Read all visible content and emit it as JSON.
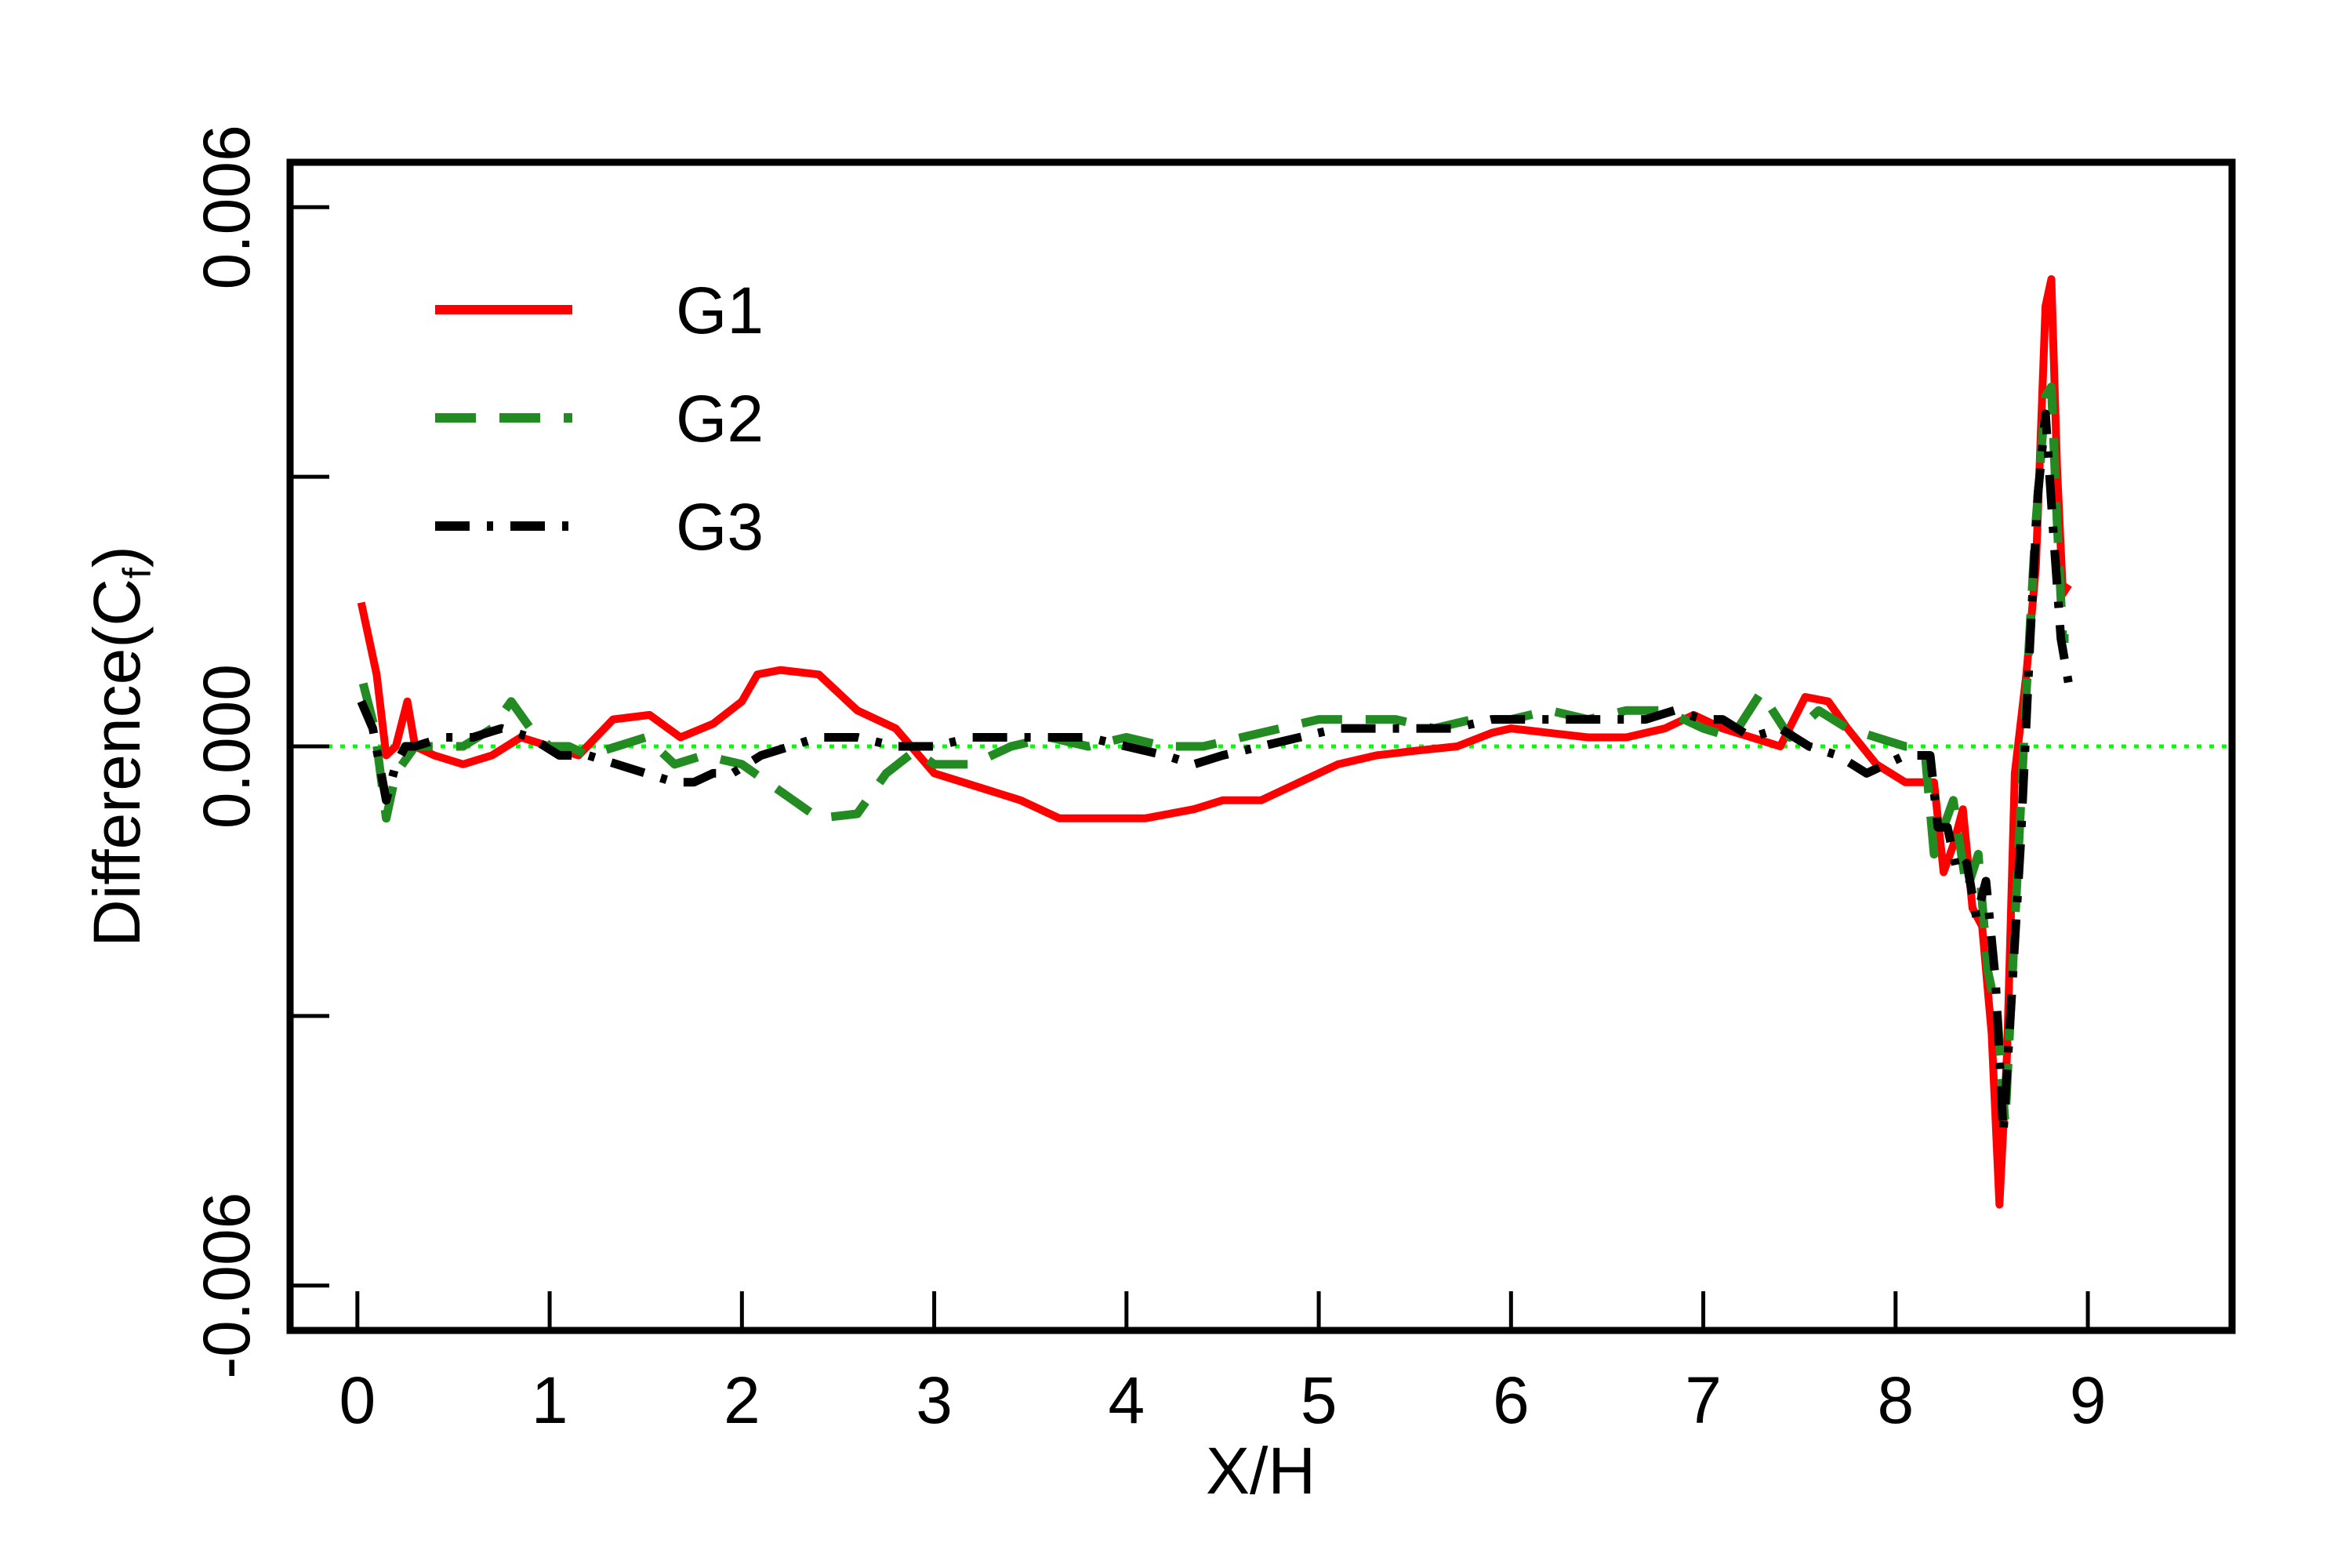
{
  "chart_data": {
    "type": "line",
    "xlabel": "X/H",
    "ylabel_main": "Difference(C",
    "ylabel_sub": "f",
    "ylabel_close": ")",
    "xlim": [
      -0.35,
      9.75
    ],
    "ylim": [
      -0.0065,
      0.0065
    ],
    "xticks": [
      0,
      1,
      2,
      3,
      4,
      5,
      6,
      7,
      8,
      9
    ],
    "xtick_labels": [
      "0",
      "1",
      "2",
      "3",
      "4",
      "5",
      "6",
      "7",
      "8",
      "9"
    ],
    "yticks": [
      -0.006,
      -0.003,
      0.0,
      0.003,
      0.006
    ],
    "ytick_labels": [
      "-0.006",
      "",
      "0.000",
      "",
      "0.006"
    ],
    "zero_line": {
      "y": 0.0,
      "color": "#00ff00",
      "style": "dotted"
    },
    "legend_position": "top-left",
    "series": [
      {
        "name": "G1",
        "color": "#ff0000",
        "style": "solid",
        "x": [
          0.02,
          0.1,
          0.15,
          0.2,
          0.26,
          0.3,
          0.4,
          0.55,
          0.7,
          0.85,
          1.0,
          1.15,
          1.33,
          1.52,
          1.68,
          1.85,
          2.0,
          2.08,
          2.2,
          2.4,
          2.6,
          2.8,
          3.0,
          3.15,
          3.3,
          3.45,
          3.65,
          3.9,
          4.1,
          4.35,
          4.5,
          4.7,
          4.9,
          5.1,
          5.3,
          5.5,
          5.72,
          5.9,
          6.0,
          6.2,
          6.4,
          6.6,
          6.8,
          6.95,
          7.1,
          7.25,
          7.4,
          7.53,
          7.65,
          7.75,
          7.9,
          8.05,
          8.2,
          8.25,
          8.3,
          8.35,
          8.4,
          8.45,
          8.5,
          8.54,
          8.58,
          8.62,
          8.68,
          8.73,
          8.78,
          8.81,
          8.84,
          8.87,
          8.9
        ],
        "y": [
          0.0016,
          0.0008,
          -0.0001,
          0.0,
          0.0005,
          0.0,
          -0.0001,
          -0.0002,
          -0.0001,
          0.0001,
          0.0,
          -0.0001,
          0.0003,
          0.00035,
          0.0001,
          0.00025,
          0.0005,
          0.0008,
          0.00085,
          0.0008,
          0.0004,
          0.0002,
          -0.0003,
          -0.0004,
          -0.0005,
          -0.0006,
          -0.0008,
          -0.0008,
          -0.0008,
          -0.0007,
          -0.0006,
          -0.0006,
          -0.0004,
          -0.0002,
          -0.0001,
          -5e-05,
          0.0,
          0.00015,
          0.0002,
          0.00015,
          0.0001,
          0.0001,
          0.0002,
          0.00035,
          0.0002,
          0.0001,
          0.0,
          0.00055,
          0.0005,
          0.0002,
          -0.0002,
          -0.0004,
          -0.0004,
          -0.0014,
          -0.0011,
          -0.0007,
          -0.0018,
          -0.002,
          -0.0032,
          -0.0051,
          -0.0034,
          -0.0003,
          0.0008,
          0.002,
          0.0049,
          0.0052,
          0.0031,
          0.0017,
          0.0018
        ]
      },
      {
        "name": "G2",
        "color": "#228b22",
        "style": "dashed",
        "x": [
          0.03,
          0.09,
          0.15,
          0.2,
          0.3,
          0.4,
          0.55,
          0.7,
          0.8,
          0.9,
          1.0,
          1.1,
          1.2,
          1.35,
          1.5,
          1.65,
          1.8,
          2.0,
          2.2,
          2.4,
          2.6,
          2.75,
          2.9,
          3.0,
          3.2,
          3.4,
          3.6,
          3.8,
          4.0,
          4.2,
          4.4,
          4.6,
          4.8,
          5.0,
          5.2,
          5.4,
          5.6,
          5.8,
          6.0,
          6.2,
          6.4,
          6.6,
          6.8,
          7.0,
          7.15,
          7.3,
          7.45,
          7.6,
          7.75,
          7.9,
          8.05,
          8.15,
          8.2,
          8.25,
          8.3,
          8.37,
          8.43,
          8.48,
          8.53,
          8.57,
          8.62,
          8.68,
          8.73,
          8.78,
          8.81,
          8.84,
          8.87,
          8.9
        ],
        "y": [
          0.0007,
          0.0002,
          -0.0008,
          -0.0003,
          0.0,
          0.0,
          0.0,
          0.0002,
          0.0005,
          0.0002,
          0.0,
          0.0,
          -0.0001,
          0.0,
          0.0001,
          -0.0002,
          -0.0001,
          -0.0002,
          -0.0005,
          -0.0008,
          -0.00075,
          -0.0003,
          -5e-05,
          -0.0002,
          -0.0002,
          0.0,
          0.0001,
          0.0,
          0.0001,
          0.0,
          0.0,
          0.0001,
          0.0002,
          0.0003,
          0.0003,
          0.0003,
          0.0002,
          0.0003,
          0.0003,
          0.0004,
          0.0003,
          0.0004,
          0.0004,
          0.0002,
          0.0001,
          0.0006,
          0.0001,
          0.0004,
          0.0002,
          0.0001,
          0.0,
          0.0,
          -0.0012,
          -0.0009,
          -0.0006,
          -0.0016,
          -0.0012,
          -0.0025,
          -0.003,
          -0.0042,
          -0.002,
          0.0006,
          0.0025,
          0.0039,
          0.004,
          0.0025,
          0.0012,
          0.0012
        ]
      },
      {
        "name": "G3",
        "color": "#000000",
        "style": "dashdot",
        "x": [
          0.02,
          0.08,
          0.15,
          0.2,
          0.25,
          0.3,
          0.45,
          0.6,
          0.75,
          0.9,
          1.05,
          1.2,
          1.35,
          1.5,
          1.65,
          1.75,
          1.85,
          1.95,
          2.1,
          2.25,
          2.4,
          2.6,
          2.8,
          3.0,
          3.2,
          3.4,
          3.6,
          3.8,
          4.0,
          4.2,
          4.35,
          4.5,
          4.7,
          4.9,
          5.1,
          5.3,
          5.5,
          5.7,
          5.9,
          6.1,
          6.3,
          6.5,
          6.7,
          6.85,
          7.0,
          7.1,
          7.25,
          7.4,
          7.55,
          7.7,
          7.85,
          7.95,
          8.05,
          8.12,
          8.18,
          8.22,
          8.27,
          8.32,
          8.37,
          8.42,
          8.47,
          8.52,
          8.56,
          8.6,
          8.65,
          8.7,
          8.74,
          8.78,
          8.82,
          8.86,
          8.9
        ],
        "y": [
          0.0005,
          0.0002,
          -0.0006,
          -0.0002,
          0.0,
          0.0,
          0.0001,
          0.0001,
          0.0002,
          0.0001,
          -0.0001,
          -0.0001,
          -0.0002,
          -0.0003,
          -0.0004,
          -0.0004,
          -0.0003,
          -0.0003,
          -0.0001,
          0.0,
          0.0001,
          0.0001,
          0.0,
          0.0,
          0.0001,
          0.0001,
          0.0001,
          0.0001,
          0.0,
          -0.0001,
          -0.0002,
          -0.0001,
          0.0,
          0.0001,
          0.0002,
          0.0002,
          0.0002,
          0.0002,
          0.0003,
          0.0003,
          0.0003,
          0.0003,
          0.0003,
          0.0004,
          0.0003,
          0.0003,
          0.0001,
          0.0002,
          0.0,
          -0.0001,
          -0.0003,
          -0.0002,
          -0.0001,
          -0.0001,
          -0.0001,
          -0.0009,
          -0.0009,
          -0.0014,
          -0.0013,
          -0.0019,
          -0.0015,
          -0.0026,
          -0.0043,
          -0.0029,
          -0.0011,
          0.0012,
          0.0028,
          0.0037,
          0.0024,
          0.0012,
          0.0007
        ]
      }
    ]
  }
}
